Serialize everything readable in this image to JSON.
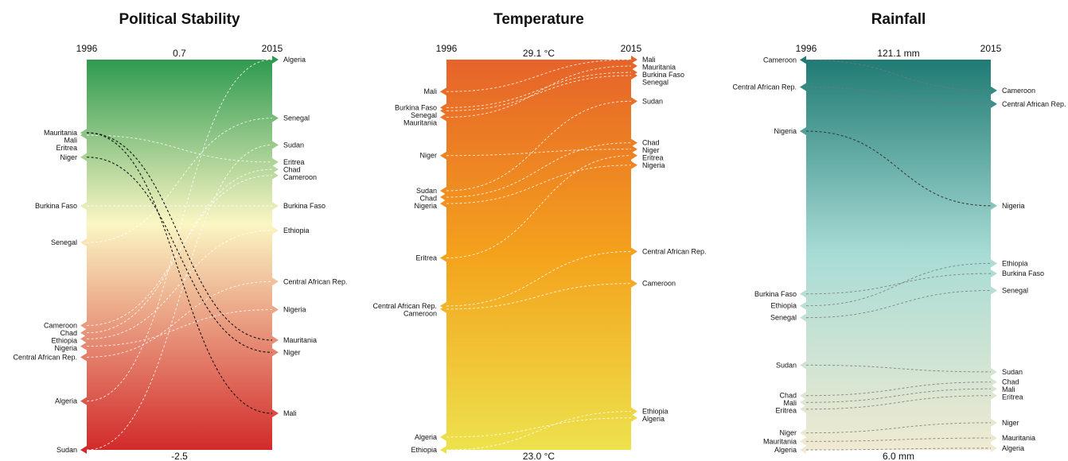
{
  "chart_data": [
    {
      "type": "slope",
      "title": "Political Stability",
      "left_year": "1996",
      "right_year": "2015",
      "max_label": "0.7",
      "min_label": "-2.5",
      "ylim": [
        -2.5,
        0.7
      ],
      "colors": [
        "#2e9a4f",
        "#fbf6c4",
        "#d22a2a"
      ],
      "color_stops": [
        0,
        0.42,
        1
      ],
      "highlight_color": "#000000",
      "line_color": "#ffffff",
      "countries": [
        {
          "name": "Mauritania",
          "v1996": 0.1,
          "v2015": -1.6,
          "highlight": true
        },
        {
          "name": "Mali",
          "v1996": 0.1,
          "v2015": -2.2,
          "highlight": true
        },
        {
          "name": "Niger",
          "v1996": -0.1,
          "v2015": -1.7,
          "highlight": true
        },
        {
          "name": "Burkina Faso",
          "v1996": -0.5,
          "v2015": -0.5,
          "highlight": false
        },
        {
          "name": "Senegal",
          "v1996": -0.8,
          "v2015": 0.22,
          "highlight": false
        },
        {
          "name": "Cameroon",
          "v1996": -1.48,
          "v2015": -0.25,
          "highlight": false
        },
        {
          "name": "Chad",
          "v1996": -1.54,
          "v2015": -0.2,
          "highlight": false
        },
        {
          "name": "Ethiopia",
          "v1996": -1.59,
          "v2015": -0.7,
          "highlight": false
        },
        {
          "name": "Nigeria",
          "v1996": -1.65,
          "v2015": -1.35,
          "highlight": false
        },
        {
          "name": "Central African Rep.",
          "v1996": -1.74,
          "v2015": -1.12,
          "highlight": false
        },
        {
          "name": "Algeria",
          "v1996": -2.1,
          "v2015": 0.7,
          "highlight": false
        },
        {
          "name": "Sudan",
          "v1996": -2.5,
          "v2015": 0.0,
          "highlight": false
        },
        {
          "name": "Eritrea",
          "v1996": 0.08,
          "v2015": -0.14,
          "highlight": false
        }
      ]
    },
    {
      "type": "slope",
      "title": "Temperature",
      "left_year": "1996",
      "right_year": "2015",
      "max_label": "29.1 °C",
      "min_label": "23.0 °C",
      "ylim": [
        23.0,
        29.1
      ],
      "colors": [
        "#e6632a",
        "#f4a21c",
        "#ede24c"
      ],
      "color_stops": [
        0,
        0.5,
        1
      ],
      "highlight_color": "#000000",
      "line_color": "#ffffff",
      "countries": [
        {
          "name": "Mali",
          "v1996": 28.6,
          "v2015": 29.1,
          "highlight": false
        },
        {
          "name": "Burkina Faso",
          "v1996": 28.35,
          "v2015": 28.9,
          "highlight": false
        },
        {
          "name": "Senegal",
          "v1996": 28.3,
          "v2015": 28.85,
          "highlight": false
        },
        {
          "name": "Mauritania",
          "v1996": 28.2,
          "v2015": 29.0,
          "highlight": false
        },
        {
          "name": "Niger",
          "v1996": 27.6,
          "v2015": 27.7,
          "highlight": false
        },
        {
          "name": "Sudan",
          "v1996": 27.05,
          "v2015": 28.45,
          "highlight": false
        },
        {
          "name": "Chad",
          "v1996": 26.95,
          "v2015": 27.8,
          "highlight": false
        },
        {
          "name": "Nigeria",
          "v1996": 26.85,
          "v2015": 27.45,
          "highlight": false
        },
        {
          "name": "Eritrea",
          "v1996": 26.0,
          "v2015": 27.6,
          "highlight": false
        },
        {
          "name": "Central African Rep.",
          "v1996": 25.25,
          "v2015": 26.1,
          "highlight": false
        },
        {
          "name": "Cameroon",
          "v1996": 25.2,
          "v2015": 25.6,
          "highlight": false
        },
        {
          "name": "Algeria",
          "v1996": 23.2,
          "v2015": 23.5,
          "highlight": false
        },
        {
          "name": "Ethiopia",
          "v1996": 23.0,
          "v2015": 23.6,
          "highlight": false
        }
      ]
    },
    {
      "type": "slope",
      "title": "Rainfall",
      "left_year": "1996",
      "right_year": "2015",
      "max_label": "121.1 mm",
      "min_label": "6.0 mm",
      "ylim": [
        6.0,
        121.1
      ],
      "colors": [
        "#1f7b74",
        "#a9dcd6",
        "#f0ead1"
      ],
      "color_stops": [
        0,
        0.5,
        1
      ],
      "highlight_color": "#333333",
      "line_color": "#777777",
      "countries": [
        {
          "name": "Cameroon",
          "v1996": 121.0,
          "v2015": 112.0,
          "highlight": false
        },
        {
          "name": "Central African Rep.",
          "v1996": 113.0,
          "v2015": 108.0,
          "highlight": false
        },
        {
          "name": "Nigeria",
          "v1996": 100.0,
          "v2015": 78.0,
          "highlight": true
        },
        {
          "name": "Burkina Faso",
          "v1996": 52.0,
          "v2015": 58.0,
          "highlight": false
        },
        {
          "name": "Ethiopia",
          "v1996": 48.5,
          "v2015": 61.0,
          "highlight": false
        },
        {
          "name": "Senegal",
          "v1996": 45.0,
          "v2015": 53.0,
          "highlight": false
        },
        {
          "name": "Sudan",
          "v1996": 31.0,
          "v2015": 29.0,
          "highlight": false
        },
        {
          "name": "Chad",
          "v1996": 22.0,
          "v2015": 26.0,
          "highlight": false
        },
        {
          "name": "Mali",
          "v1996": 20.0,
          "v2015": 24.0,
          "highlight": false
        },
        {
          "name": "Eritrea",
          "v1996": 18.0,
          "v2015": 22.0,
          "highlight": false
        },
        {
          "name": "Niger",
          "v1996": 11.0,
          "v2015": 14.0,
          "highlight": false
        },
        {
          "name": "Mauritania",
          "v1996": 8.5,
          "v2015": 9.5,
          "highlight": false
        },
        {
          "name": "Algeria",
          "v1996": 6.0,
          "v2015": 6.5,
          "highlight": false
        }
      ]
    }
  ]
}
